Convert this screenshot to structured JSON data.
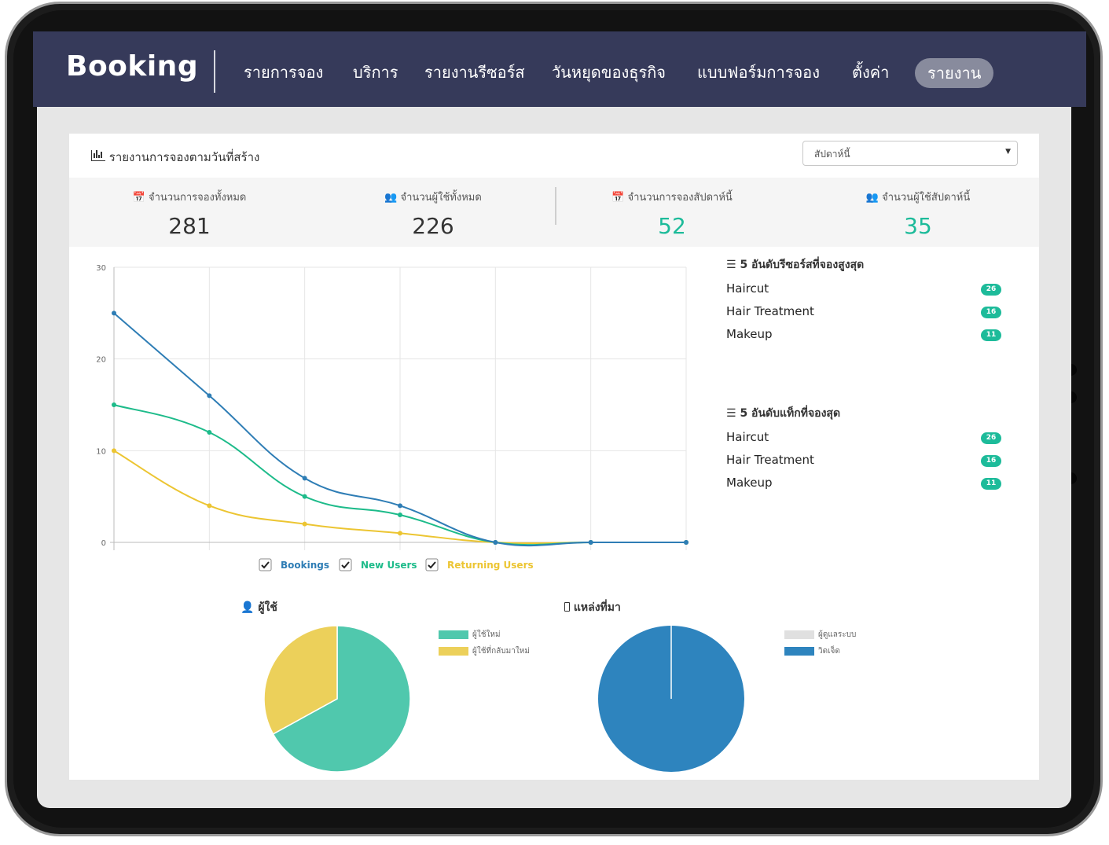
{
  "nav": {
    "brand": "Booking",
    "items": [
      "รายการจอง",
      "บริการ",
      "รายงานรีซอร์ส",
      "วันหยุดของธุรกิจ",
      "แบบฟอร์มการจอง",
      "ตั้งค่า",
      "รายงาน"
    ],
    "active_index": 6
  },
  "panel": {
    "title": "รายงานการจองตามวันที่สร้าง",
    "period_select": "สัปดาห์นี้"
  },
  "stats": [
    {
      "label": "จำนวนการจองทั้งหมด",
      "value": "281",
      "icon": "calendar-icon"
    },
    {
      "label": "จำนวนผู้ใช้ทั้งหมด",
      "value": "226",
      "icon": "users-icon"
    },
    {
      "label": "จำนวนการจองสัปดาห์นี้",
      "value": "52",
      "icon": "calendar-icon"
    },
    {
      "label": "จำนวนผู้ใช้สัปดาห์นี้",
      "value": "35",
      "icon": "users-icon"
    }
  ],
  "top_resources": {
    "title": "5 อันดับรีซอร์สที่จองสูงสุด",
    "items": [
      {
        "name": "Haircut",
        "count": "26"
      },
      {
        "name": "Hair Treatment",
        "count": "16"
      },
      {
        "name": "Makeup",
        "count": "11"
      }
    ]
  },
  "top_tags": {
    "title": "5 อันดับแท็กที่จองสุด",
    "items": [
      {
        "name": "Haircut",
        "count": "26"
      },
      {
        "name": "Hair Treatment",
        "count": "16"
      },
      {
        "name": "Makeup",
        "count": "11"
      }
    ]
  },
  "users_pie": {
    "title": "ผู้ใช้",
    "legend": [
      {
        "label": "ผู้ใช้ใหม่",
        "color": "#50c8ad"
      },
      {
        "label": "ผู้ใช้ที่กลับมาใหม่",
        "color": "#ecd05a"
      }
    ]
  },
  "source_pie": {
    "title": "แหล่งที่มา",
    "legend": [
      {
        "label": "ผู้ดูแลระบบ",
        "color": "#e0e0e0"
      },
      {
        "label": "วิดเจ็ด",
        "color": "#2e84be"
      }
    ]
  },
  "chart_data": [
    {
      "type": "line",
      "x": [
        1,
        2,
        3,
        4,
        5,
        6,
        7
      ],
      "ylim": [
        0,
        30
      ],
      "yticks": [
        0,
        10,
        20,
        30
      ],
      "grid": true,
      "legend_position": "bottom",
      "series": [
        {
          "name": "Bookings",
          "color": "#2e7db5",
          "values": [
            25,
            16,
            7,
            4,
            0,
            0,
            0
          ]
        },
        {
          "name": "New Users",
          "color": "#1dbb8a",
          "values": [
            15,
            12,
            5,
            3,
            0,
            0,
            0
          ]
        },
        {
          "name": "Returning Users",
          "color": "#ecc532",
          "values": [
            10,
            4,
            2,
            1,
            0,
            0,
            0
          ]
        }
      ]
    },
    {
      "type": "pie",
      "title": "ผู้ใช้",
      "labels": [
        "ผู้ใช้ใหม่",
        "ผู้ใช้ที่กลับมาใหม่"
      ],
      "values": [
        67,
        33
      ],
      "colors": [
        "#50c8ad",
        "#ecd05a"
      ]
    },
    {
      "type": "pie",
      "title": "แหล่งที่มา",
      "labels": [
        "ผู้ดูแลระบบ",
        "วิดเจ็ด"
      ],
      "values": [
        0,
        100
      ],
      "colors": [
        "#e0e0e0",
        "#2e84be"
      ]
    }
  ]
}
